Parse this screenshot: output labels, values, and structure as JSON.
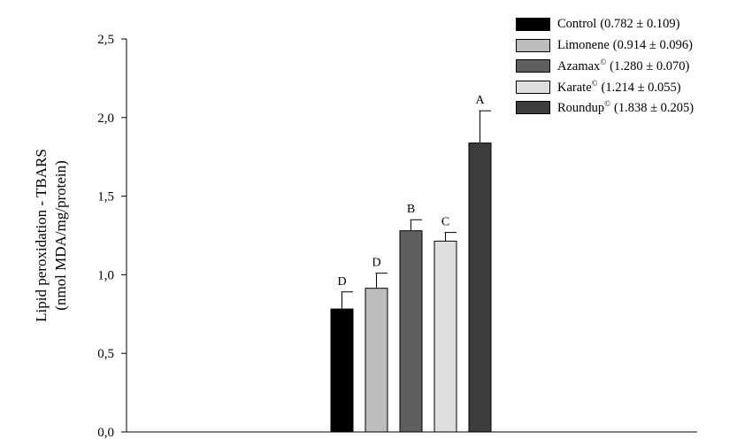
{
  "chart_data": {
    "type": "bar",
    "ylabel_line1": "Lipid peroxidation - TBARS",
    "ylabel_line2": "(nmol MDA/mg/protein)",
    "ylim": [
      0,
      2.5
    ],
    "yticks": [
      "0,0",
      "0,5",
      "1,0",
      "1,5",
      "2,0",
      "2,5"
    ],
    "ytick_values": [
      0,
      0.5,
      1.0,
      1.5,
      2.0,
      2.5
    ],
    "grid": false,
    "legend_position": "top-right",
    "series": [
      {
        "name": "Control",
        "mark": "",
        "stats": "(0.782 ± 0.109)",
        "value": 0.782,
        "error": 0.109,
        "letter": "D",
        "color": "#000000"
      },
      {
        "name": "Limonene",
        "mark": "",
        "stats": "(0.914 ± 0.096)",
        "value": 0.914,
        "error": 0.096,
        "letter": "D",
        "color": "#bdbdbd"
      },
      {
        "name": "Azamax",
        "mark": "©",
        "stats": "(1.280 ± 0.070)",
        "value": 1.28,
        "error": 0.07,
        "letter": "B",
        "color": "#5f5f5f"
      },
      {
        "name": "Karate",
        "mark": "©",
        "stats": "(1.214 ± 0.055)",
        "value": 1.214,
        "error": 0.055,
        "letter": "C",
        "color": "#dedede"
      },
      {
        "name": "Roundup",
        "mark": "©",
        "stats": "(1.838 ± 0.205)",
        "value": 1.838,
        "error": 0.205,
        "letter": "A",
        "color": "#3d3d3d"
      }
    ]
  }
}
